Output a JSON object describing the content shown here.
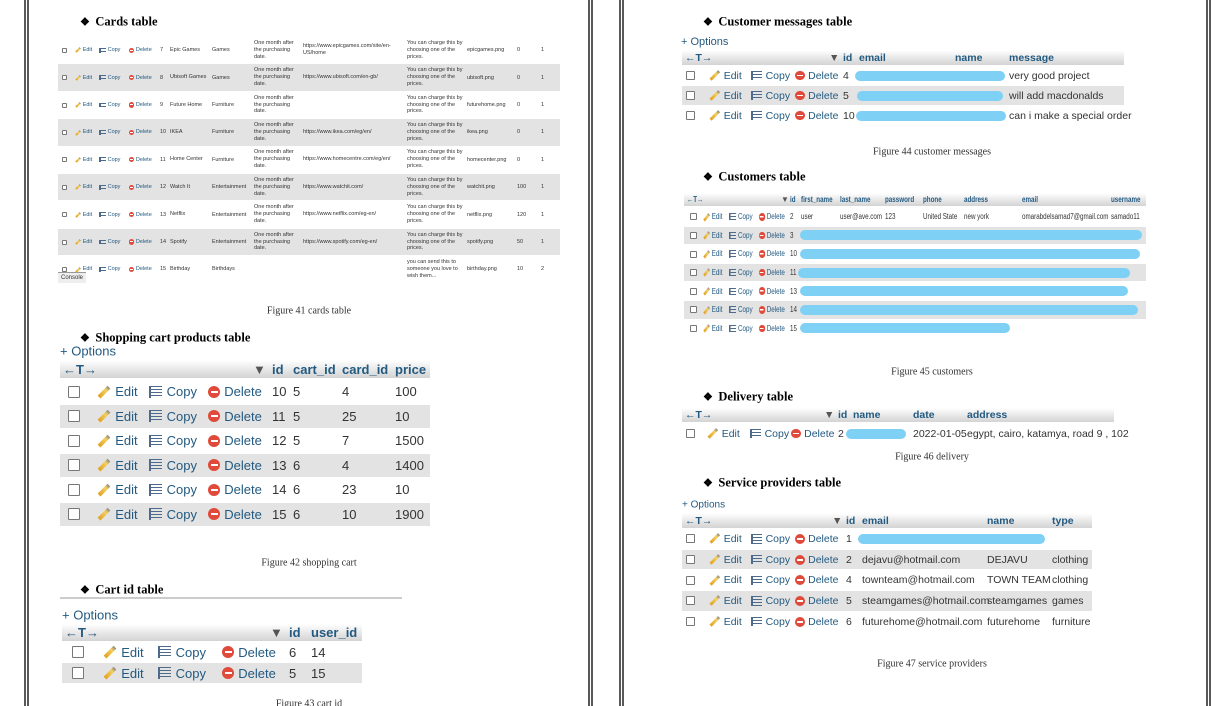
{
  "actions": {
    "edit": "Edit",
    "copy": "Copy",
    "delete": "Delete"
  },
  "console": "Console",
  "cards_table": {
    "heading": "Cards table",
    "caption": "Figure 41 cards table",
    "rows": [
      [
        7,
        "Epic Games",
        "Games",
        "One month after the purchasing date.",
        "https://www.epicgames.com/site/en-US/home",
        "You can charge this by choosing one of the prices.",
        "epicgames.png",
        0,
        1
      ],
      [
        8,
        "Ubisoft Games",
        "Games",
        "One month after the purchasing date.",
        "https://www.ubisoft.com/en-gb/",
        "You can charge this by choosing one of the prices.",
        "ubisoft.png",
        0,
        1
      ],
      [
        9,
        "Future Home",
        "Furniture",
        "One month after the purchasing date.",
        null,
        "You can charge this by choosing one of the prices.",
        "futurehome.png",
        0,
        1
      ],
      [
        10,
        "IKEA",
        "Furniture",
        "One month after the purchasing date.",
        "https://www.ikea.com/eg/en/",
        "You can charge this by choosing one of the prices.",
        "ikea.png",
        0,
        1
      ],
      [
        11,
        "Home Center",
        "Furniture",
        "One month after the purchasing date.",
        "https://www.homecentre.com/eg/en/",
        "You can charge this by choosing one of the prices.",
        "homecenter.png",
        0,
        1
      ],
      [
        12,
        "Watch It",
        "Entertainment",
        "One month after the purchasing date.",
        "https://www.watchit.com/",
        "You can charge this by choosing one of the prices.",
        "watchit.png",
        100,
        1
      ],
      [
        13,
        "Netflix",
        "Entertainment",
        "One month after the purchasing date.",
        "https://www.netflix.com/eg-en/",
        "You can charge this by choosing one of the prices.",
        "netflix.png",
        120,
        1
      ],
      [
        14,
        "Spotify",
        "Entertainment",
        "One month after the purchasing date.",
        "https://www.spotify.com/eg-en/",
        "You can charge this by choosing one of the prices.",
        "spotify.png",
        50,
        1
      ],
      [
        15,
        "Birthday",
        "Birthdays",
        null,
        null,
        "you can send this to someone you love to wish them...",
        "birthday.png",
        10,
        2
      ]
    ]
  },
  "shopping_cart_table": {
    "heading": "Shopping cart products table",
    "options": "+ Options",
    "caption": "Figure 42 shopping cart",
    "header": {
      "nav": "←T→",
      "sort": "▼",
      "columns": [
        "id",
        "cart_id",
        "card_id",
        "price"
      ]
    },
    "rows": [
      [
        10,
        5,
        4,
        100
      ],
      [
        11,
        5,
        25,
        10
      ],
      [
        12,
        5,
        7,
        1500
      ],
      [
        13,
        6,
        4,
        1400
      ],
      [
        14,
        6,
        23,
        10
      ],
      [
        15,
        6,
        10,
        1900
      ]
    ]
  },
  "cart_id_table": {
    "heading": "Cart id table",
    "options": "+ Options",
    "caption": "Figure 43 cart id",
    "header": {
      "nav": "←T→",
      "sort": "▼",
      "columns": [
        "id",
        "user_id"
      ]
    },
    "rows": [
      [
        6,
        14
      ],
      [
        5,
        15
      ]
    ]
  },
  "customer_messages_table": {
    "heading": "Customer messages table",
    "options": "+ Options",
    "caption": "Figure 44 customer messages",
    "header": {
      "nav": "←T→",
      "sort": "▼",
      "columns": [
        "id",
        "email",
        "name",
        "message"
      ]
    },
    "rows": [
      [
        4,
        null,
        null,
        "very good project"
      ],
      [
        5,
        null,
        null,
        "will add macdonalds"
      ],
      [
        10,
        null,
        null,
        "can i make a special order"
      ]
    ]
  },
  "customers_table": {
    "heading": "Customers table",
    "caption": "Figure 45 customers",
    "header": {
      "nav": "←T→",
      "sort": "▼",
      "columns": [
        "id",
        "first_name",
        "last_name",
        "password",
        "phone",
        "address",
        "email",
        "username"
      ]
    },
    "rows": [
      [
        2,
        "user",
        "user@ave.com",
        123,
        "United State",
        "new york",
        "omarabdelsamad7@gmail.com",
        "samado11"
      ],
      [
        3,
        null,
        null,
        null,
        null,
        null,
        null,
        null
      ],
      [
        10,
        null,
        null,
        null,
        null,
        null,
        null,
        null
      ],
      [
        11,
        null,
        null,
        null,
        null,
        null,
        null,
        null
      ],
      [
        13,
        null,
        null,
        null,
        null,
        null,
        null,
        null
      ],
      [
        14,
        null,
        null,
        null,
        null,
        null,
        null,
        null
      ],
      [
        15,
        null,
        null,
        null,
        null,
        null,
        null,
        null
      ]
    ]
  },
  "delivery_table": {
    "heading": "Delivery table",
    "caption": "Figure 46 delivery",
    "header": {
      "nav": "←T→",
      "sort": "▼",
      "columns": [
        "id",
        "name",
        "date",
        "address"
      ]
    },
    "rows": [
      [
        2,
        null,
        "2022-01-05",
        "egypt, cairo, katamya, road 9 , 102"
      ]
    ]
  },
  "service_providers_table": {
    "heading": "Service providers table",
    "options": "+ Options",
    "caption": "Figure 47 service providers",
    "header": {
      "nav": "←T→",
      "sort": "▼",
      "columns": [
        "id",
        "email",
        "name",
        "type"
      ]
    },
    "rows": [
      [
        1,
        null,
        null,
        null
      ],
      [
        2,
        "dejavu@hotmail.com",
        "DEJAVU",
        "clothing"
      ],
      [
        4,
        "townteam@hotmail.com",
        "TOWN TEAM",
        "clothing"
      ],
      [
        5,
        "steamgames@hotmail.com",
        "steamgames",
        "games"
      ],
      [
        6,
        "futurehome@hotmail.com",
        "futurehome",
        "furniture"
      ]
    ]
  }
}
